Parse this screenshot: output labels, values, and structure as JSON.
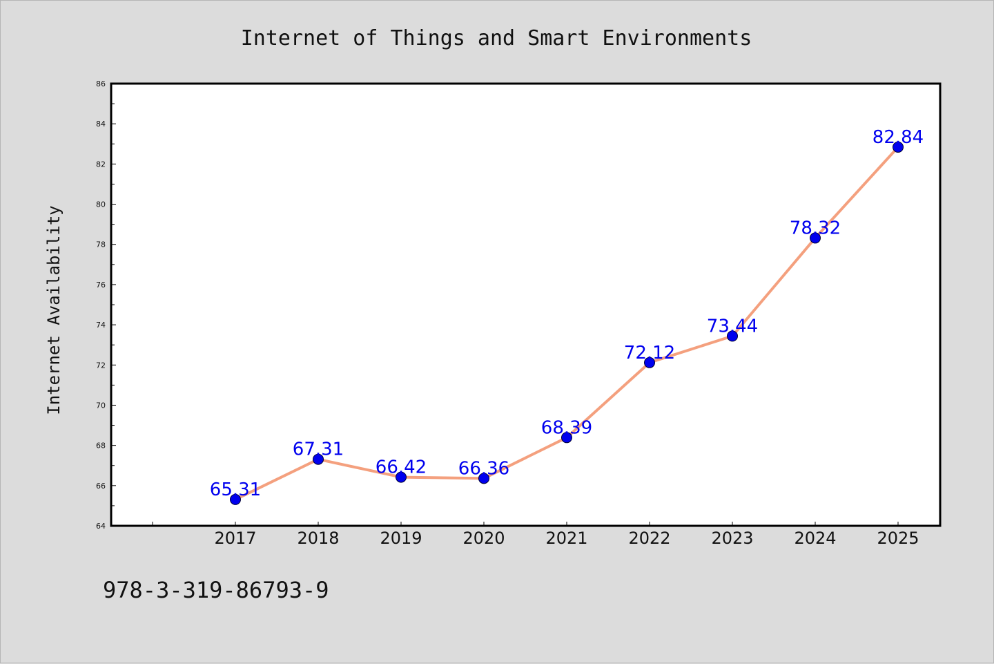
{
  "chart_data": {
    "type": "line",
    "title": "Internet of Things and Smart Environments",
    "ylabel": "Internet Availability",
    "xlabel": "",
    "categories": [
      "2017",
      "2018",
      "2019",
      "2020",
      "2021",
      "2022",
      "2023",
      "2024",
      "2025"
    ],
    "series": [
      {
        "values": [
          65.31,
          67.31,
          66.42,
          66.36,
          68.39,
          72.12,
          73.44,
          78.32,
          82.84
        ],
        "data_labels": [
          "65.31",
          "67.31",
          "66.42",
          "66.36",
          "68.39",
          "72.12",
          "73.44",
          "78.32",
          "82.84"
        ],
        "line_color": "#f4a07e",
        "marker_color": "#0000ee"
      }
    ],
    "ylim": [
      64,
      86
    ],
    "yticks": [
      "64",
      "66",
      "68",
      "70",
      "72",
      "74",
      "76",
      "78",
      "80",
      "82",
      "84",
      "86"
    ],
    "grid": false,
    "label_color": "#0000ee",
    "plot_background": "#ffffff",
    "page_background": "#dcdcdc"
  },
  "footer": {
    "text": "978-3-319-86793-9"
  }
}
